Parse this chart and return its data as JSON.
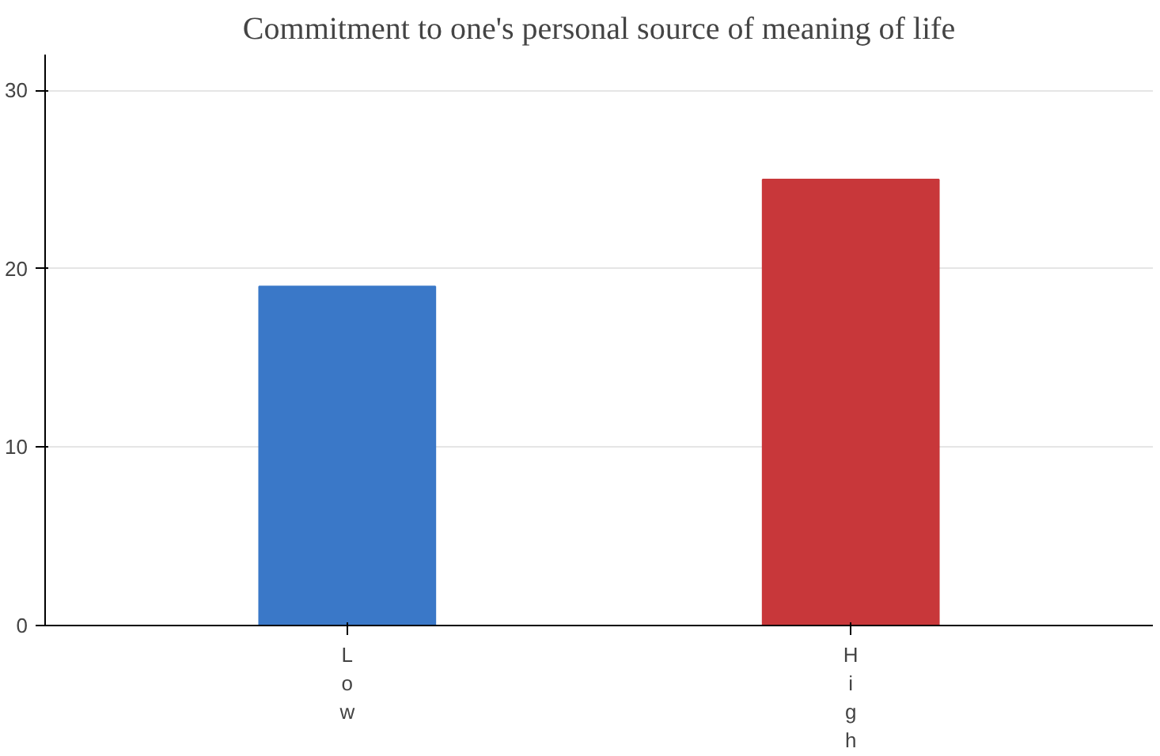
{
  "chart_data": {
    "type": "bar",
    "title": "Commitment to one's personal source of meaning of life",
    "categories": [
      "Low",
      "High"
    ],
    "values": [
      19,
      25
    ],
    "colors": [
      "#3a78c8",
      "#c8373a"
    ],
    "ylim": [
      0,
      32
    ],
    "yticks": [
      0,
      10,
      20,
      30
    ],
    "grid": "y"
  }
}
